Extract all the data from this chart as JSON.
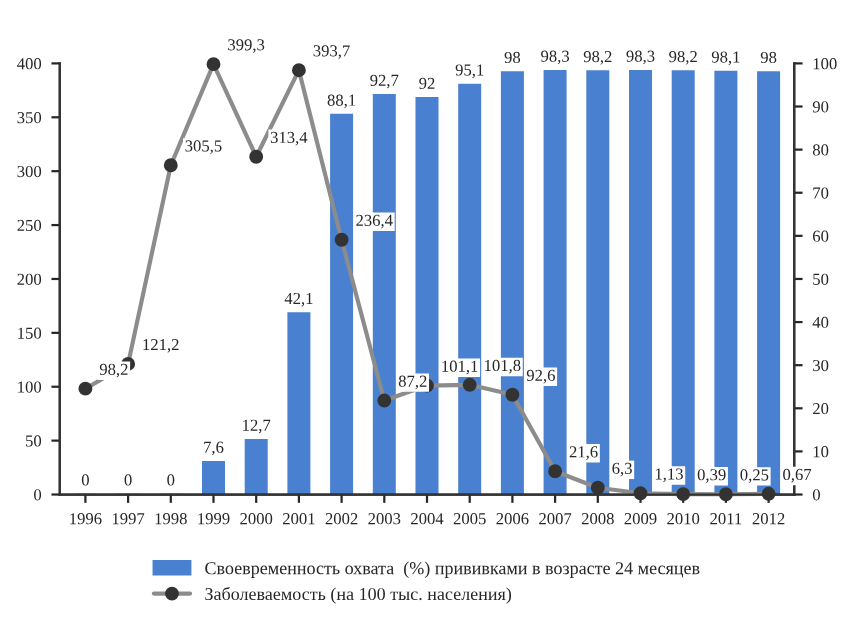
{
  "chart_data": {
    "type": "bar",
    "categories": [
      "1996",
      "1997",
      "1998",
      "1999",
      "2000",
      "2001",
      "2002",
      "2003",
      "2004",
      "2005",
      "2006",
      "2007",
      "2008",
      "2009",
      "2010",
      "2011",
      "2012"
    ],
    "series": [
      {
        "name": "Своевременность охвата  (%) прививками в возрасте 24 месяцев",
        "axis": "y2",
        "color": "#4a80d0",
        "values": [
          0,
          0,
          0,
          7.6,
          12.7,
          42.1,
          88.1,
          92.7,
          92,
          95.1,
          98,
          98.3,
          98.2,
          98.3,
          98.2,
          98.1,
          98
        ],
        "value_labels": [
          "0",
          "0",
          "0",
          "7,6",
          "12,7",
          "42,1",
          "88,1",
          "92,7",
          "92",
          "95,1",
          "98",
          "98,3",
          "98,2",
          "98,3",
          "98,2",
          "98,1",
          "98"
        ]
      },
      {
        "name": "Заболеваемость (на 100 тыс. населения)",
        "type": "line",
        "color": "#8c8c8c",
        "marker": "circle",
        "values": [
          98.2,
          121.2,
          305.5,
          399.3,
          313.4,
          393.7,
          236.4,
          87.2,
          101.1,
          101.8,
          92.6,
          21.6,
          6.3,
          1.13,
          0.39,
          0.25,
          0.67
        ],
        "value_labels": [
          "98,2",
          "121,2",
          "305,5",
          "399,3",
          "313,4",
          "393,7",
          "236,4",
          "87,2",
          "101,1",
          "101,8",
          "92,6",
          "21,6",
          "6,3",
          "1,13",
          "0,39",
          "0,25",
          "0,67"
        ]
      }
    ],
    "ylim": [
      0,
      400
    ],
    "yticks": [
      0,
      50,
      100,
      150,
      200,
      250,
      300,
      350,
      400
    ],
    "y2lim": [
      0,
      100
    ],
    "y2ticks": [
      0,
      10,
      20,
      30,
      40,
      50,
      60,
      70,
      80,
      90,
      100
    ],
    "legend": "bottom",
    "grid": false
  }
}
